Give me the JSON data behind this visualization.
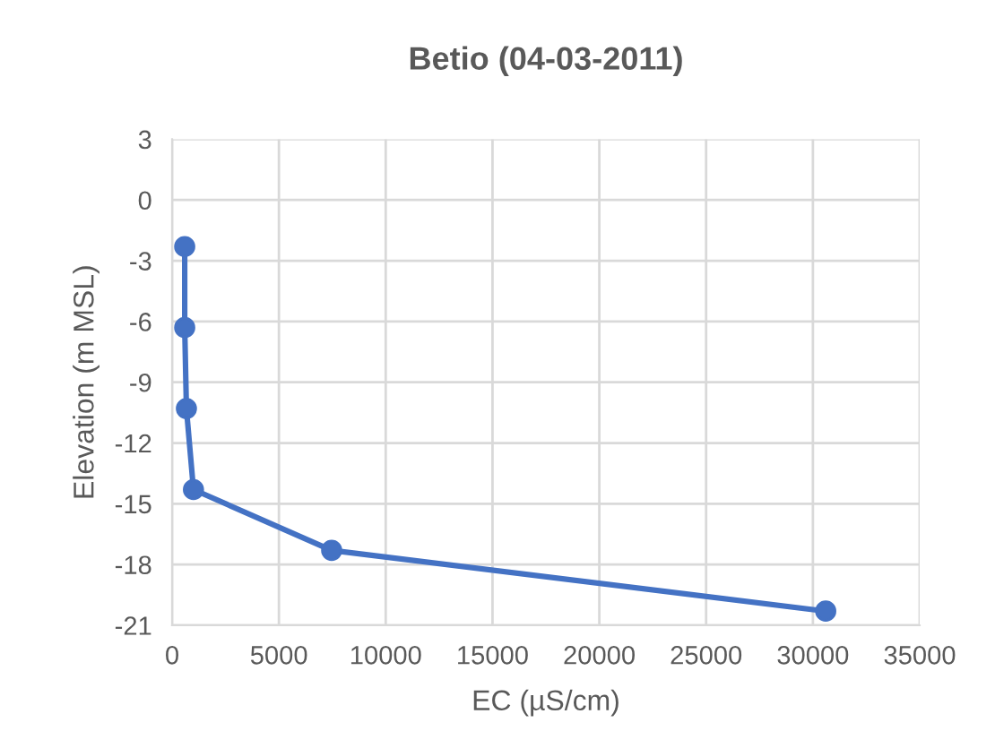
{
  "chart_data": {
    "type": "line",
    "title": "Betio (04-03-2011)",
    "xlabel": "EC (µS/cm)",
    "ylabel": "Elevation (m MSL)",
    "series": [
      {
        "color": "#4472c4",
        "x": [
          590,
          590,
          670,
          1000,
          7470,
          30600
        ],
        "values": [
          -2.3,
          -6.3,
          -10.3,
          -14.3,
          -17.3,
          -20.3
        ]
      }
    ],
    "xlim": [
      0,
      35000
    ],
    "xticks": [
      0,
      5000,
      10000,
      15000,
      20000,
      25000,
      30000,
      35000
    ],
    "ylim": [
      -21,
      3
    ],
    "yticks": [
      -21,
      -18,
      -15,
      -12,
      -9,
      -6,
      -3,
      0,
      3
    ],
    "grid": true,
    "marker": "circle",
    "line_style": "solid"
  }
}
